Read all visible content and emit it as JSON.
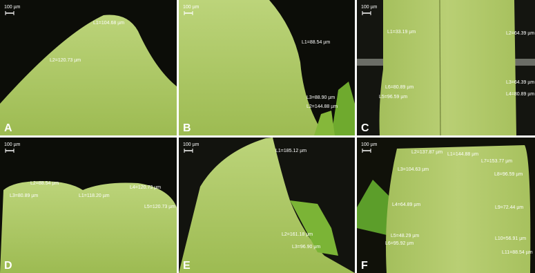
{
  "panels": [
    {
      "label": "A",
      "scale": "100 µm",
      "measurements": [
        "L1=104.68 µm",
        "L2=120.73 µm"
      ]
    },
    {
      "label": "B",
      "scale": "100 µm",
      "measurements": [
        "L1=88.54 µm",
        "L3=88.90 µm",
        "L2=144.88 µm"
      ]
    },
    {
      "label": "C",
      "scale": "100 µm",
      "measurements": [
        "L1=33.19 µm",
        "L2=64.39 µm",
        "L3=64.39 µm",
        "L6=80.89 µm",
        "L5=96.59 µm",
        "L4=80.89 µm"
      ]
    },
    {
      "label": "D",
      "scale": "100 µm",
      "measurements": [
        "L2=88.54 µm",
        "L3=80.89 µm",
        "L1=118.20 µm",
        "L4=120.73 µm",
        "L5=120.73 µm"
      ]
    },
    {
      "label": "E",
      "scale": "100 µm",
      "measurements": [
        "L1=185.12 µm",
        "L2=161.18 µm",
        "L3=96.90 µm"
      ]
    },
    {
      "label": "F",
      "scale": "100 µm",
      "measurements": [
        "L2=137.87 µm",
        "L1=144.88 µm",
        "L7=153.77 µm",
        "L3=104.63 µm",
        "L8=96.59 µm",
        "L4=64.89 µm",
        "L9=72.44 µm",
        "L5=48.29 µm",
        "L10=56.91 µm",
        "L6=95.92 µm",
        "L11=88.54 µm"
      ]
    }
  ]
}
